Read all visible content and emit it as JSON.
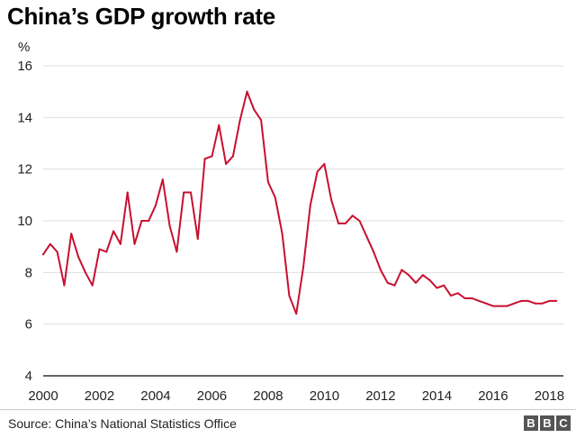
{
  "header": {
    "title": "China’s GDP growth rate"
  },
  "footer": {
    "source": "Source: China’s National Statistics Office",
    "logo_letters": [
      "B",
      "B",
      "C"
    ]
  },
  "colors": {
    "line": "#c8102e",
    "grid": "#dddddd",
    "axis": "#333333",
    "text": "#222222"
  },
  "chart_data": {
    "type": "line",
    "title": "China’s GDP growth rate",
    "ylabel": "%",
    "xlabel": "",
    "ylim": [
      4,
      16
    ],
    "xlim": [
      2000,
      2018.5
    ],
    "yticks": [
      "4",
      "6",
      "8",
      "10",
      "12",
      "14",
      "16"
    ],
    "xticks": [
      "2000",
      "2002",
      "2004",
      "2006",
      "2008",
      "2010",
      "2012",
      "2014",
      "2016",
      "2018"
    ],
    "grid": "horizontal",
    "series": [
      {
        "x": [
          2000.0,
          2000.25,
          2000.5,
          2000.75,
          2001.0,
          2001.25,
          2001.5,
          2001.75,
          2002.0,
          2002.25,
          2002.5,
          2002.75,
          2003.0,
          2003.25,
          2003.5,
          2003.75,
          2004.0,
          2004.25,
          2004.5,
          2004.75,
          2005.0,
          2005.25,
          2005.5,
          2005.75,
          2006.0,
          2006.25,
          2006.5,
          2006.75,
          2007.0,
          2007.25,
          2007.5,
          2007.75,
          2008.0,
          2008.25,
          2008.5,
          2008.75,
          2009.0,
          2009.25,
          2009.5,
          2009.75,
          2010.0,
          2010.25,
          2010.5,
          2010.75,
          2011.0,
          2011.25,
          2011.5,
          2011.75,
          2012.0,
          2012.25,
          2012.5,
          2012.75,
          2013.0,
          2013.25,
          2013.5,
          2013.75,
          2014.0,
          2014.25,
          2014.5,
          2014.75,
          2015.0,
          2015.25,
          2015.5,
          2015.75,
          2016.0,
          2016.25,
          2016.5,
          2016.75,
          2017.0,
          2017.25,
          2017.5,
          2017.75,
          2018.0,
          2018.25
        ],
        "values": [
          8.7,
          9.1,
          8.8,
          7.5,
          9.5,
          8.6,
          8.0,
          7.5,
          8.9,
          8.8,
          9.6,
          9.1,
          11.1,
          9.1,
          10.0,
          10.0,
          10.6,
          11.6,
          9.8,
          8.8,
          11.1,
          11.1,
          9.3,
          12.4,
          12.5,
          13.7,
          12.2,
          12.5,
          13.9,
          15.0,
          14.3,
          13.9,
          11.5,
          10.9,
          9.5,
          7.1,
          6.4,
          8.2,
          10.6,
          11.9,
          12.2,
          10.8,
          9.9,
          9.9,
          10.2,
          10.0,
          9.4,
          8.8,
          8.1,
          7.6,
          7.5,
          8.1,
          7.9,
          7.6,
          7.9,
          7.7,
          7.4,
          7.5,
          7.1,
          7.2,
          7.0,
          7.0,
          6.9,
          6.8,
          6.7,
          6.7,
          6.7,
          6.8,
          6.9,
          6.9,
          6.8,
          6.8,
          6.9,
          6.9
        ]
      }
    ]
  }
}
